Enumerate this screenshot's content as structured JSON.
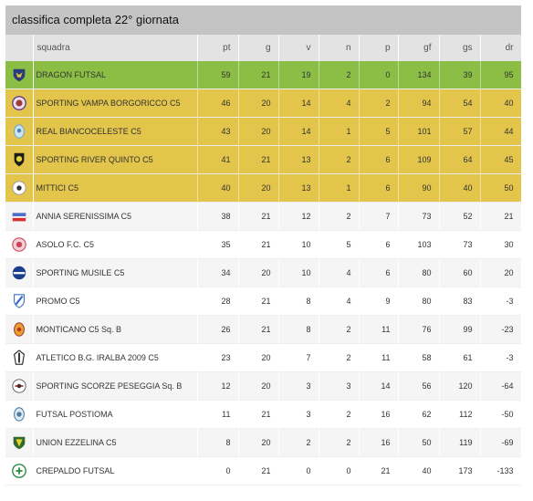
{
  "title": "classifica completa 22° giornata",
  "columns": [
    "squadra",
    "pt",
    "g",
    "v",
    "n",
    "p",
    "gf",
    "gs",
    "dr"
  ],
  "colors": {
    "first": "#8cbe45",
    "qualified": "#e2c54a",
    "header": "#e3e3e3",
    "title_bg": "#c4c4c4"
  },
  "rows": [
    {
      "team": "DRAGON FUTSAL",
      "pt": "59",
      "g": "21",
      "v": "19",
      "n": "2",
      "p": "0",
      "gf": "134",
      "gs": "39",
      "dr": "95",
      "logo": "dragon-futsal-logo"
    },
    {
      "team": "SPORTING VAMPA BORGORICCO C5",
      "pt": "46",
      "g": "20",
      "v": "14",
      "n": "4",
      "p": "2",
      "gf": "94",
      "gs": "54",
      "dr": "40",
      "logo": "sporting-vampa-logo"
    },
    {
      "team": "REAL BIANCOCELESTE C5",
      "pt": "43",
      "g": "20",
      "v": "14",
      "n": "1",
      "p": "5",
      "gf": "101",
      "gs": "57",
      "dr": "44",
      "logo": "real-biancoceleste-logo"
    },
    {
      "team": "SPORTING RIVER QUINTO C5",
      "pt": "41",
      "g": "21",
      "v": "13",
      "n": "2",
      "p": "6",
      "gf": "109",
      "gs": "64",
      "dr": "45",
      "logo": "sporting-river-quinto-logo"
    },
    {
      "team": "MITTICI C5",
      "pt": "40",
      "g": "20",
      "v": "13",
      "n": "1",
      "p": "6",
      "gf": "90",
      "gs": "40",
      "dr": "50",
      "logo": "mittici-logo"
    },
    {
      "team": "ANNIA SERENISSIMA C5",
      "pt": "38",
      "g": "21",
      "v": "12",
      "n": "2",
      "p": "7",
      "gf": "73",
      "gs": "52",
      "dr": "21",
      "logo": "annia-serenissima-logo"
    },
    {
      "team": "ASOLO F.C. C5",
      "pt": "35",
      "g": "21",
      "v": "10",
      "n": "5",
      "p": "6",
      "gf": "103",
      "gs": "73",
      "dr": "30",
      "logo": "asolo-logo"
    },
    {
      "team": "SPORTING MUSILE C5",
      "pt": "34",
      "g": "20",
      "v": "10",
      "n": "4",
      "p": "6",
      "gf": "80",
      "gs": "60",
      "dr": "20",
      "logo": "sporting-musile-logo"
    },
    {
      "team": "PROMO C5",
      "pt": "28",
      "g": "21",
      "v": "8",
      "n": "4",
      "p": "9",
      "gf": "80",
      "gs": "83",
      "dr": "-3",
      "logo": "promo-logo"
    },
    {
      "team": "MONTICANO C5 Sq. B",
      "pt": "26",
      "g": "21",
      "v": "8",
      "n": "2",
      "p": "11",
      "gf": "76",
      "gs": "99",
      "dr": "-23",
      "logo": "monticano-logo"
    },
    {
      "team": "ATLETICO B.G. IRALBA 2009 C5",
      "pt": "23",
      "g": "20",
      "v": "7",
      "n": "2",
      "p": "11",
      "gf": "58",
      "gs": "61",
      "dr": "-3",
      "logo": "atletico-iralba-logo"
    },
    {
      "team": "SPORTING SCORZE PESEGGIA Sq. B",
      "pt": "12",
      "g": "20",
      "v": "3",
      "n": "3",
      "p": "14",
      "gf": "56",
      "gs": "120",
      "dr": "-64",
      "logo": "sporting-scorze-logo"
    },
    {
      "team": "FUTSAL POSTIOMA",
      "pt": "11",
      "g": "21",
      "v": "3",
      "n": "2",
      "p": "16",
      "gf": "62",
      "gs": "112",
      "dr": "-50",
      "logo": "futsal-postioma-logo"
    },
    {
      "team": "UNION EZZELINA C5",
      "pt": "8",
      "g": "20",
      "v": "2",
      "n": "2",
      "p": "16",
      "gf": "50",
      "gs": "119",
      "dr": "-69",
      "logo": "union-ezzelina-logo"
    },
    {
      "team": "CREPALDO FUTSAL",
      "pt": "0",
      "g": "21",
      "v": "0",
      "n": "0",
      "p": "21",
      "gf": "40",
      "gs": "173",
      "dr": "-133",
      "logo": "crepaldo-logo"
    }
  ]
}
